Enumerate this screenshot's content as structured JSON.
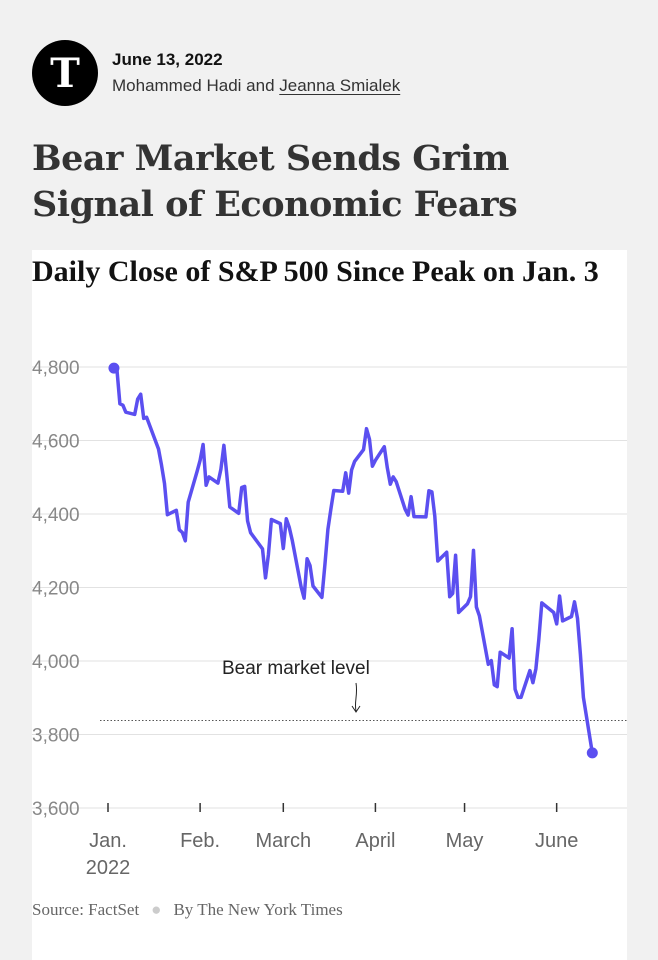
{
  "header": {
    "logo_glyph": "T",
    "date": "June 13, 2022",
    "authors_prefix": "Mohammed Hadi and ",
    "authors_link": "Jeanna Smialek"
  },
  "headline": "Bear Market Sends Grim Signal of Economic Fears",
  "footer": {
    "source": "Source: FactSet",
    "credit": "By The New York Times"
  },
  "chart_data": {
    "type": "line",
    "title": "Daily Close of S&P 500 Since Peak on Jan. 3",
    "xlabel": "",
    "ylabel": "",
    "ylim": [
      3600,
      4800
    ],
    "yticks": [
      3600,
      3800,
      4000,
      4200,
      4400,
      4600,
      4800
    ],
    "ytick_labels": [
      "3,600",
      "3,800",
      "4,000",
      "4,200",
      "4,400",
      "4,600",
      "4,800"
    ],
    "xticks": [
      {
        "date": "2022-01-01",
        "label": "Jan.",
        "sublabel": "2022"
      },
      {
        "date": "2022-02-01",
        "label": "Feb.",
        "sublabel": ""
      },
      {
        "date": "2022-03-01",
        "label": "March",
        "sublabel": ""
      },
      {
        "date": "2022-04-01",
        "label": "April",
        "sublabel": ""
      },
      {
        "date": "2022-05-01",
        "label": "May",
        "sublabel": ""
      },
      {
        "date": "2022-06-01",
        "label": "June",
        "sublabel": ""
      }
    ],
    "grid": true,
    "line_color": "#5b4ff0",
    "reference_line": {
      "value": 3838,
      "label": "Bear market level",
      "style": "dotted"
    },
    "series": [
      {
        "x": [
          "2022-01-03",
          "2022-01-04",
          "2022-01-05",
          "2022-01-06",
          "2022-01-07",
          "2022-01-10",
          "2022-01-11",
          "2022-01-12",
          "2022-01-13",
          "2022-01-14",
          "2022-01-18",
          "2022-01-19",
          "2022-01-20",
          "2022-01-21",
          "2022-01-24",
          "2022-01-25",
          "2022-01-26",
          "2022-01-27",
          "2022-01-28",
          "2022-01-31",
          "2022-02-01",
          "2022-02-02",
          "2022-02-03",
          "2022-02-04",
          "2022-02-07",
          "2022-02-08",
          "2022-02-09",
          "2022-02-10",
          "2022-02-11",
          "2022-02-14",
          "2022-02-15",
          "2022-02-16",
          "2022-02-17",
          "2022-02-18",
          "2022-02-22",
          "2022-02-23",
          "2022-02-24",
          "2022-02-25",
          "2022-02-28",
          "2022-03-01",
          "2022-03-02",
          "2022-03-03",
          "2022-03-04",
          "2022-03-07",
          "2022-03-08",
          "2022-03-09",
          "2022-03-10",
          "2022-03-11",
          "2022-03-14",
          "2022-03-15",
          "2022-03-16",
          "2022-03-17",
          "2022-03-18",
          "2022-03-21",
          "2022-03-22",
          "2022-03-23",
          "2022-03-24",
          "2022-03-25",
          "2022-03-28",
          "2022-03-29",
          "2022-03-30",
          "2022-03-31",
          "2022-04-01",
          "2022-04-04",
          "2022-04-05",
          "2022-04-06",
          "2022-04-07",
          "2022-04-08",
          "2022-04-11",
          "2022-04-12",
          "2022-04-13",
          "2022-04-14",
          "2022-04-18",
          "2022-04-19",
          "2022-04-20",
          "2022-04-21",
          "2022-04-22",
          "2022-04-25",
          "2022-04-26",
          "2022-04-27",
          "2022-04-28",
          "2022-04-29",
          "2022-05-02",
          "2022-05-03",
          "2022-05-04",
          "2022-05-05",
          "2022-05-06",
          "2022-05-09",
          "2022-05-10",
          "2022-05-11",
          "2022-05-12",
          "2022-05-13",
          "2022-05-16",
          "2022-05-17",
          "2022-05-18",
          "2022-05-19",
          "2022-05-20",
          "2022-05-23",
          "2022-05-24",
          "2022-05-25",
          "2022-05-26",
          "2022-05-27",
          "2022-05-31",
          "2022-06-01",
          "2022-06-02",
          "2022-06-03",
          "2022-06-06",
          "2022-06-07",
          "2022-06-08",
          "2022-06-09",
          "2022-06-10",
          "2022-06-13"
        ],
        "y": [
          4797,
          4794,
          4700,
          4696,
          4677,
          4671,
          4713,
          4726,
          4660,
          4663,
          4577,
          4533,
          4483,
          4398,
          4410,
          4357,
          4350,
          4327,
          4432,
          4516,
          4546,
          4589,
          4478,
          4501,
          4484,
          4522,
          4587,
          4504,
          4419,
          4402,
          4472,
          4475,
          4381,
          4349,
          4305,
          4226,
          4289,
          4385,
          4374,
          4306,
          4387,
          4364,
          4329,
          4202,
          4171,
          4278,
          4260,
          4204,
          4173,
          4262,
          4358,
          4412,
          4464,
          4462,
          4512,
          4457,
          4520,
          4543,
          4575,
          4632,
          4603,
          4530,
          4546,
          4583,
          4526,
          4481,
          4501,
          4488,
          4413,
          4397,
          4447,
          4393,
          4392,
          4463,
          4460,
          4394,
          4272,
          4296,
          4175,
          4184,
          4288,
          4132,
          4156,
          4175,
          4301,
          4147,
          4123,
          3991,
          4001,
          3935,
          3930,
          4024,
          4008,
          4088,
          3923,
          3901,
          3901,
          3974,
          3941,
          3979,
          4058,
          4158,
          4132,
          4101,
          4177,
          4109,
          4121,
          4161,
          4116,
          4018,
          3901,
          3750
        ]
      }
    ]
  }
}
